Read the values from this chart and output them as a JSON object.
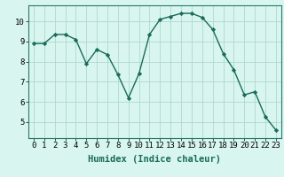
{
  "x": [
    0,
    1,
    2,
    3,
    4,
    5,
    6,
    7,
    8,
    9,
    10,
    11,
    12,
    13,
    14,
    15,
    16,
    17,
    18,
    19,
    20,
    21,
    22,
    23
  ],
  "y": [
    8.9,
    8.9,
    9.35,
    9.35,
    9.1,
    7.9,
    8.6,
    8.35,
    7.35,
    6.2,
    7.4,
    9.35,
    10.1,
    10.25,
    10.4,
    10.4,
    10.2,
    9.6,
    8.4,
    7.6,
    6.35,
    6.5,
    5.25,
    4.6
  ],
  "line_color": "#1a6b5a",
  "marker": "D",
  "marker_size": 2.2,
  "line_width": 1.0,
  "bg_color": "#d8f5f0",
  "grid_color": "#b0d8ce",
  "xlabel": "Humidex (Indice chaleur)",
  "xlabel_fontsize": 7.5,
  "tick_fontsize": 6.5,
  "ylim": [
    4.2,
    10.8
  ],
  "yticks": [
    5,
    6,
    7,
    8,
    9,
    10
  ],
  "xlim": [
    -0.5,
    23.5
  ]
}
